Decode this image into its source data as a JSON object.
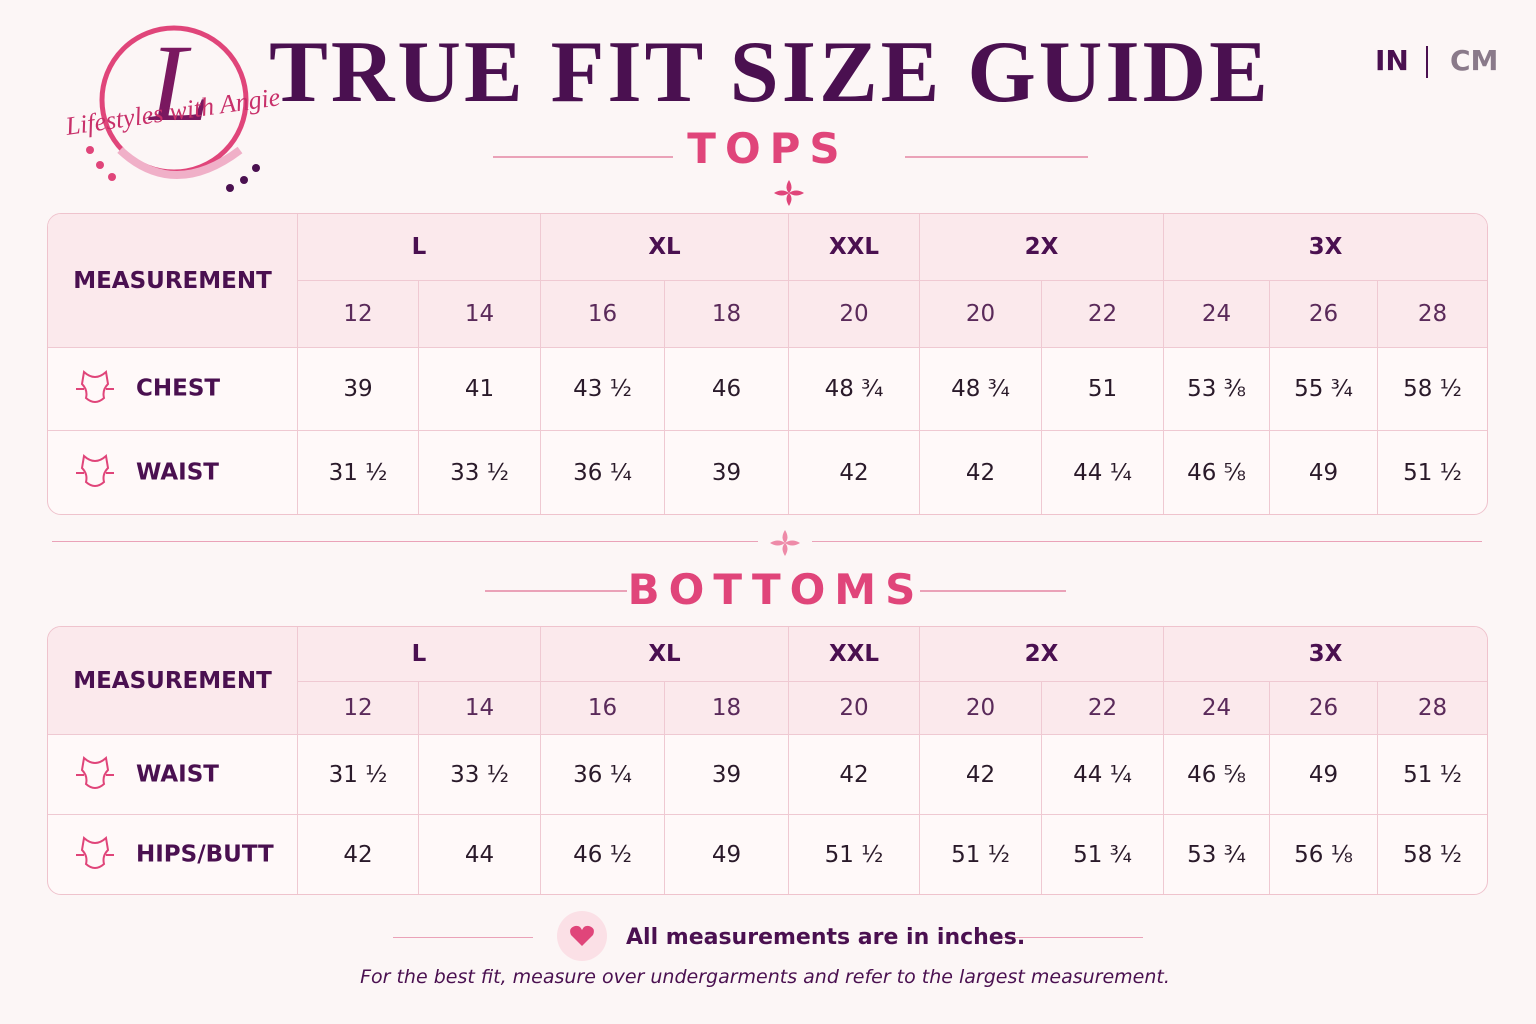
{
  "logo": {
    "initial": "L",
    "text": "Lifestyles with Angie"
  },
  "header": {
    "title": "TRUE FIT SIZE GUIDE",
    "units": [
      "IN",
      "CM"
    ]
  },
  "tops": {
    "title": "TOPS",
    "measurement_header": "MEASUREMENT",
    "sizes": [
      {
        "label": "L",
        "numbers": [
          "12",
          "14"
        ]
      },
      {
        "label": "XL",
        "numbers": [
          "16",
          "18"
        ]
      },
      {
        "label": "XXL",
        "numbers": [
          "20"
        ]
      },
      {
        "label": "2X",
        "numbers": [
          "20",
          "22"
        ]
      },
      {
        "label": "3X",
        "numbers": [
          "24",
          "26",
          "28"
        ]
      }
    ],
    "rows": [
      {
        "label": "CHEST",
        "values": [
          "39",
          "41",
          "43 ½",
          "46",
          "48 ¾",
          "48 ¾",
          "51",
          "53 ⅜",
          "55 ¾",
          "58 ½"
        ]
      },
      {
        "label": "WAIST",
        "values": [
          "31 ½",
          "33 ½",
          "36 ¼",
          "39",
          "42",
          "42",
          "44 ¼",
          "46 ⅝",
          "49",
          "51 ½"
        ]
      }
    ]
  },
  "bottoms": {
    "title": "BOTTOMS",
    "measurement_header": "MEASUREMENT",
    "sizes": [
      {
        "label": "L",
        "numbers": [
          "12",
          "14"
        ]
      },
      {
        "label": "XL",
        "numbers": [
          "16",
          "18"
        ]
      },
      {
        "label": "XXL",
        "numbers": [
          "20"
        ]
      },
      {
        "label": "2X",
        "numbers": [
          "20",
          "22"
        ]
      },
      {
        "label": "3X",
        "numbers": [
          "24",
          "26",
          "28"
        ]
      }
    ],
    "rows": [
      {
        "label": "WAIST",
        "values": [
          "31 ½",
          "33 ½",
          "36 ¼",
          "39",
          "42",
          "42",
          "44 ¼",
          "46 ⅝",
          "49",
          "51 ½"
        ]
      },
      {
        "label": "HIPS/BUTT",
        "values": [
          "42",
          "44",
          "46 ½",
          "49",
          "51 ½",
          "51 ½",
          "51 ¾",
          "53 ¾",
          "56 ⅛",
          "58 ½"
        ]
      }
    ]
  },
  "footer": {
    "note": "All measurements are in inches.",
    "tip": "For the best fit, measure over undergarments and refer to the largest measurement."
  }
}
